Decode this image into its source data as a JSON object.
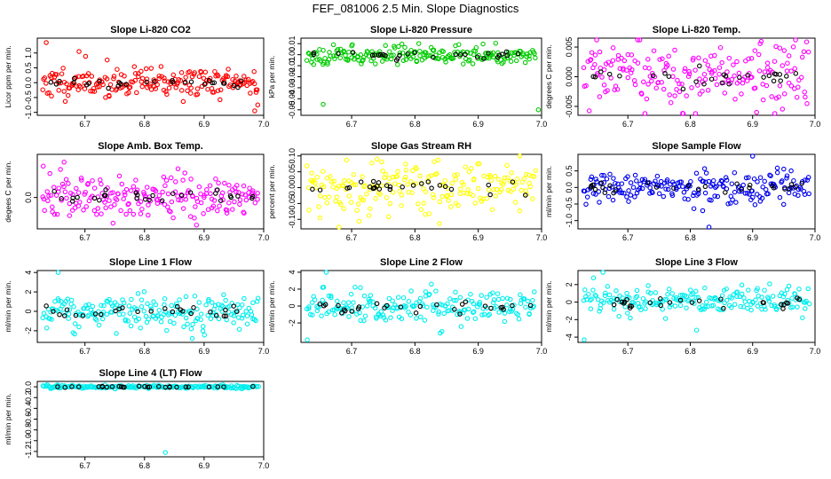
{
  "title": "FEF_081006  2.5 Min. Slope Diagnostics",
  "x_ticks": [
    "6.7",
    "6.8",
    "6.9",
    "7.0"
  ],
  "colors": {
    "black_points": "#000000"
  },
  "chart_data": [
    {
      "type": "scatter",
      "title": "Slope Li-820 CO2",
      "ylabel": "Licor ppm per min.",
      "color": "#ff0000",
      "xlim": [
        6.62,
        7.0
      ],
      "ylim": [
        -1.1,
        1.5
      ],
      "ytick_values": [
        -1.0,
        -0.5,
        0.0,
        0.5,
        1.0
      ],
      "ytick_labels": [
        "-1.0",
        "-0.5",
        "0.0",
        "0.5",
        "1.0"
      ],
      "seed": 11,
      "spread": 0.25,
      "outliers": [
        [
          6.635,
          1.35
        ],
        [
          6.69,
          1.05
        ],
        [
          6.985,
          -0.95
        ],
        [
          6.99,
          -0.75
        ]
      ]
    },
    {
      "type": "scatter",
      "title": "Slope Li-820 Pressure",
      "ylabel": "kPa per min.",
      "color": "#00cc00",
      "xlim": [
        6.62,
        7.0
      ],
      "ylim": [
        -0.055,
        0.015
      ],
      "ytick_values": [
        -0.05,
        -0.04,
        -0.03,
        -0.02,
        -0.01,
        0.0,
        0.01
      ],
      "ytick_labels": [
        "-0.05",
        "-0.04",
        "-0.03",
        "-0.02",
        "-0.01",
        "0.00",
        "0.01"
      ],
      "seed": 23,
      "spread": 0.004,
      "outliers": [
        [
          6.655,
          -0.045
        ],
        [
          6.995,
          -0.05
        ],
        [
          6.7,
          0.008
        ]
      ]
    },
    {
      "type": "scatter",
      "title": "Slope Li-820 Temp.",
      "ylabel": "degrees C per min.",
      "color": "#ff00ff",
      "xlim": [
        6.62,
        7.0
      ],
      "ylim": [
        -0.0065,
        0.0065
      ],
      "ytick_values": [
        -0.005,
        0.0,
        0.005
      ],
      "ytick_labels": [
        "-0.005",
        "0.000",
        "0.005"
      ],
      "seed": 37,
      "spread": 0.0028,
      "outliers": [
        [
          6.65,
          0.0065
        ]
      ]
    },
    {
      "type": "scatter",
      "title": "Slope Amb. Box Temp.",
      "ylabel": "degees C per min.",
      "color": "#ff00ff",
      "xlim": [
        6.62,
        7.0
      ],
      "ylim": [
        -0.004,
        0.0055
      ],
      "ytick_values": [
        0.0
      ],
      "ytick_labels": [
        "0.0"
      ],
      "seed": 41,
      "spread": 0.0014,
      "outliers": [
        [
          6.665,
          0.0045
        ],
        [
          6.63,
          0.004
        ]
      ]
    },
    {
      "type": "scatter",
      "title": "Slope Gas Stream RH",
      "ylabel": "percent per min.",
      "color": "#ffff00",
      "xlim": [
        6.62,
        7.0
      ],
      "ylim": [
        -0.13,
        0.105
      ],
      "ytick_values": [
        -0.1,
        -0.05,
        0.0,
        0.05,
        0.1
      ],
      "ytick_labels": [
        "-0.10",
        "-0.05",
        "0.00",
        "0.05",
        "0.10"
      ],
      "seed": 53,
      "spread": 0.04,
      "outliers": [
        [
          6.68,
          -0.125
        ],
        [
          6.74,
          0.09
        ]
      ]
    },
    {
      "type": "scatter",
      "title": "Slope Sample Flow",
      "ylabel": "ml/min per min.",
      "color": "#0000ee",
      "xlim": [
        6.62,
        7.0
      ],
      "ylim": [
        -1.25,
        1.0
      ],
      "ytick_values": [
        -1.0,
        -0.5,
        0.0,
        0.5
      ],
      "ytick_labels": [
        "-1.0",
        "-0.5",
        "0.0",
        "0.5"
      ],
      "seed": 67,
      "spread": 0.22,
      "outliers": [
        [
          6.83,
          -1.2
        ],
        [
          6.9,
          0.95
        ],
        [
          6.82,
          -0.7
        ]
      ]
    },
    {
      "type": "scatter",
      "title": "Slope Line 1 Flow",
      "ylabel": "ml/min per min.",
      "color": "#00eeee",
      "xlim": [
        6.62,
        7.0
      ],
      "ylim": [
        -3.2,
        4.2
      ],
      "ytick_values": [
        -2,
        0,
        2,
        4
      ],
      "ytick_labels": [
        "-2",
        "0",
        "2",
        "4"
      ],
      "seed": 71,
      "spread": 0.9,
      "outliers": [
        [
          6.655,
          4.0
        ],
        [
          6.88,
          -2.8
        ],
        [
          6.68,
          -2.2
        ]
      ]
    },
    {
      "type": "scatter",
      "title": "Slope Line 2 Flow",
      "ylabel": "ml/min per min.",
      "color": "#00eeee",
      "xlim": [
        6.62,
        7.0
      ],
      "ylim": [
        -4.3,
        4.2
      ],
      "ytick_values": [
        -2,
        0,
        2,
        4
      ],
      "ytick_labels": [
        "-2",
        "0",
        "2",
        "4"
      ],
      "seed": 83,
      "spread": 0.9,
      "outliers": [
        [
          6.63,
          -4.0
        ],
        [
          6.66,
          4.0
        ],
        [
          6.84,
          -3.2
        ]
      ]
    },
    {
      "type": "scatter",
      "title": "Slope Line 3 Flow",
      "ylabel": "ml/min per min.",
      "color": "#00eeee",
      "xlim": [
        6.62,
        7.0
      ],
      "ylim": [
        -4.6,
        3.6
      ],
      "ytick_values": [
        -4,
        -2,
        0,
        2
      ],
      "ytick_labels": [
        "-4",
        "-2",
        "0",
        "2"
      ],
      "seed": 97,
      "spread": 0.9,
      "outliers": [
        [
          6.63,
          -4.3
        ],
        [
          6.66,
          3.4
        ],
        [
          6.81,
          -3.2
        ]
      ]
    },
    {
      "type": "scatter",
      "title": "Slope Line 4 (LT) Flow",
      "ylabel": "ml/min per min.",
      "color": "#00eeee",
      "xlim": [
        6.62,
        7.0
      ],
      "ylim": [
        -1.3,
        0.1
      ],
      "ytick_values": [
        -1.2,
        -1.0,
        -0.8,
        -0.6,
        -0.4,
        -0.2,
        0.0
      ],
      "ytick_labels": [
        "-1.2",
        "-1.0",
        "-0.8",
        "-0.6",
        "-0.4",
        "-0.2",
        "0.0"
      ],
      "seed": 101,
      "spread": 0.015,
      "outliers": [
        [
          6.835,
          -1.22
        ]
      ]
    }
  ]
}
